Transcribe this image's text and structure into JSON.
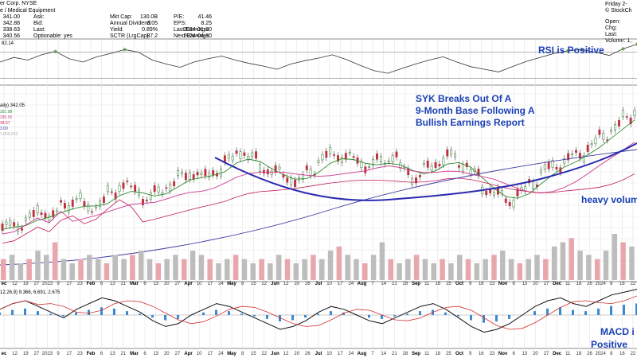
{
  "header": {
    "company": "er Corp.  NYSE",
    "sector": "e / Medical Equipment",
    "col1": [
      {
        "label": "",
        "value": "341.00"
      },
      {
        "label": "",
        "value": "342.88"
      },
      {
        "label": "",
        "value": "338.63"
      },
      {
        "label": "",
        "value": "340.56"
      }
    ],
    "col2": [
      {
        "label": "Ask:",
        "value": ""
      },
      {
        "label": "Bid:",
        "value": ""
      },
      {
        "label": "Last:",
        "value": ""
      },
      {
        "label": "Optionable:",
        "value": "yes"
      }
    ],
    "col3": [
      {
        "label": "Mkt Cap:",
        "value": "130.0B"
      },
      {
        "label": "Annual Dividend",
        "value": "3.05"
      },
      {
        "label": "Yield:",
        "value": "0.89%"
      },
      {
        "label": "SCTR (LrgCap):",
        "value": "87.2"
      }
    ],
    "col4": [
      {
        "label": "P/E:",
        "value": "41.46"
      },
      {
        "label": "EPS:",
        "value": "8.25"
      },
      {
        "label": "Last Earnings:",
        "value": "2024-01-30"
      },
      {
        "label": "Next Earnings:",
        "value": "2024-04-30"
      }
    ],
    "right": [
      "Friday  2-",
      "© StockCh",
      "Open:",
      "Chg:",
      "Last:",
      "Volume: 1,"
    ],
    "right_vals": [
      "",
      "4",
      "",
      "",
      "",
      ""
    ]
  },
  "rsi_label": "82.14",
  "price_panel_label": "aily) 342.05",
  "ma_labels": [
    "291.98",
    "286.95",
    "28.57",
    "3.00",
    "1,859,510"
  ],
  "macd_label": "12,26,9) 9.366, 6.691, 2.675",
  "annotations": {
    "rsi": "RSI is Positive",
    "breakout": [
      "SYK Breaks Out Of A",
      "9-Month Base Following A",
      "Bullish Earnings Report"
    ],
    "volume": "heavy volum",
    "macd": [
      "MACD i",
      "Positive"
    ]
  },
  "chart_data": [
    {
      "type": "line",
      "title": "RSI",
      "series": [
        {
          "values": [
            55,
            62,
            58,
            66,
            71,
            60,
            55,
            63,
            68,
            74,
            70,
            58,
            52,
            47,
            55,
            60,
            64,
            58,
            53,
            49,
            44,
            52,
            57,
            61,
            66,
            59,
            50,
            42,
            38,
            45,
            52,
            58,
            63,
            55,
            48,
            44,
            40,
            48,
            56,
            62,
            68,
            72,
            74,
            70,
            65,
            75,
            82
          ]
        }
      ],
      "ylim": [
        20,
        90
      ]
    },
    {
      "type": "line",
      "title": "",
      "x_ticks": [
        "ec",
        "12",
        "19",
        "27",
        "2023",
        "9",
        "17",
        "23",
        "Feb",
        "6",
        "13",
        "21",
        "Mar",
        "6",
        "13",
        "20",
        "27",
        "Apr",
        "10",
        "17",
        "24",
        "May",
        "8",
        "15",
        "22",
        "Jun",
        "12",
        "20",
        "26",
        "Jul",
        "10",
        "17",
        "24",
        "Aug",
        "7",
        "14",
        "21",
        "28",
        "Sep",
        "11",
        "18",
        "25",
        "Oct",
        "9",
        "16",
        "23",
        "Nov",
        "6",
        "13",
        "20",
        "27",
        "Dec",
        "11",
        "18",
        "26",
        "2024",
        "8",
        "16",
        "22"
      ],
      "series": [
        {
          "values": [
            238,
            240,
            246,
            252,
            248,
            258,
            262,
            255,
            259,
            268,
            276,
            270,
            264,
            268,
            276,
            282,
            286,
            282,
            288,
            296,
            305,
            298,
            290,
            286,
            282,
            278,
            288,
            298,
            302,
            300,
            296,
            292,
            296,
            300,
            288,
            282,
            290,
            296,
            300,
            294,
            284,
            272,
            266,
            262,
            268,
            278,
            288,
            292,
            298,
            302,
            310,
            318,
            326,
            334,
            342
          ]
        }
      ]
    },
    {
      "type": "bar",
      "title": "Volume",
      "values": [
        5,
        6,
        4,
        5,
        7,
        6,
        9,
        5,
        4,
        5,
        6,
        5,
        4,
        6,
        5,
        6,
        7,
        5,
        4,
        5,
        6,
        5,
        7,
        6,
        5,
        4,
        5,
        6,
        5,
        4,
        5,
        4,
        6,
        5,
        4,
        5,
        6,
        5,
        7,
        8,
        6,
        5,
        4,
        6,
        9,
        5,
        4,
        5,
        6,
        5,
        4,
        5,
        4,
        6,
        5,
        4,
        5,
        6,
        7,
        5,
        4,
        5,
        6,
        5,
        8,
        9,
        10,
        7,
        6,
        5,
        7,
        11,
        9,
        8
      ]
    },
    {
      "type": "line",
      "title": "MACD",
      "series": [
        {
          "values": [
            2,
            4,
            5,
            3,
            1,
            -1,
            2,
            4,
            6,
            5,
            3,
            1,
            -2,
            -4,
            -3,
            0,
            2,
            4,
            3,
            1,
            -1,
            -3,
            -5,
            -4,
            -2,
            1,
            3,
            2,
            0,
            -2,
            -3,
            -1,
            1,
            3,
            4,
            2,
            -1,
            -4,
            -6,
            -5,
            -3,
            0,
            3,
            5,
            6,
            4,
            3,
            5,
            7,
            8,
            9
          ]
        }
      ]
    }
  ]
}
